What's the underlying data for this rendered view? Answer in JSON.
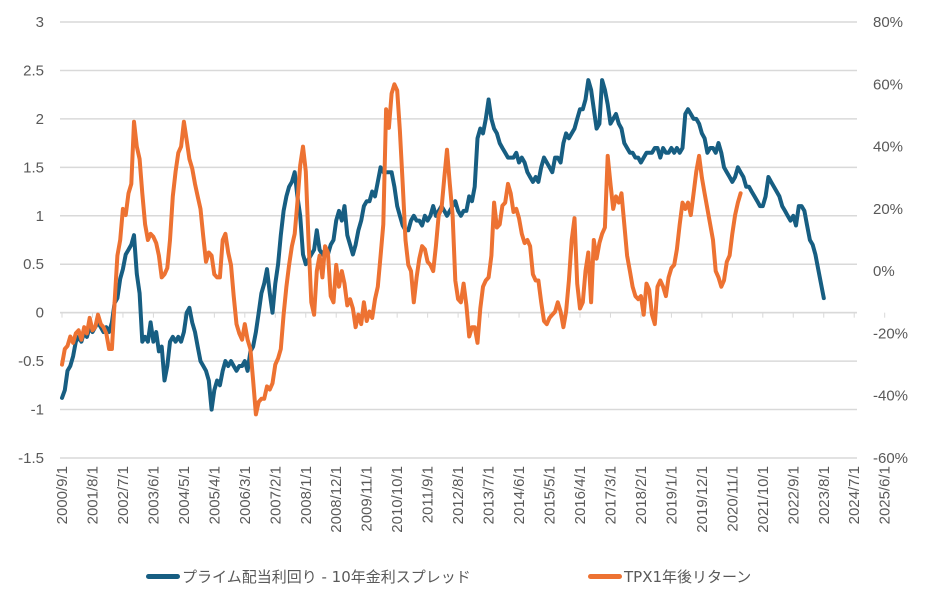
{
  "chart_data": {
    "type": "line",
    "title": "",
    "xlabel": "",
    "ylabel": "",
    "y_left": {
      "range": [
        -1.5,
        3
      ],
      "ticks": [
        "3",
        "2.5",
        "2",
        "1.5",
        "1",
        "0.5",
        "0",
        "-0.5",
        "-1",
        "-1.5"
      ]
    },
    "y_right": {
      "range": [
        -60,
        80
      ],
      "unit": "%",
      "ticks": [
        "80%",
        "60%",
        "40%",
        "20%",
        "0%",
        "-20%",
        "-40%",
        "-60%"
      ]
    },
    "x_start": "2000/9",
    "x_interval_months": 1,
    "x_tick_labels": [
      "2000/9/1",
      "2001/8/1",
      "2002/7/1",
      "2003/6/1",
      "2004/5/1",
      "2005/4/1",
      "2006/3/1",
      "2007/2/1",
      "2008/1/1",
      "2008/12/1",
      "2009/11/1",
      "2010/10/1",
      "2011/9/1",
      "2012/8/1",
      "2013/7/1",
      "2014/6/1",
      "2015/5/1",
      "2016/4/1",
      "2017/3/1",
      "2018/2/1",
      "2019/1/1",
      "2019/12/1",
      "2020/11/1",
      "2021/10/1",
      "2022/9/1",
      "2023/8/1",
      "2024/7/1",
      "2025/6/1"
    ],
    "grid": true,
    "legend_position": "bottom",
    "series": [
      {
        "name": "プライム配当利回り - 10年金利スプレッド",
        "axis": "left",
        "color": "#175e82",
        "values": [
          -0.88,
          -0.8,
          -0.6,
          -0.55,
          -0.45,
          -0.3,
          -0.25,
          -0.3,
          -0.2,
          -0.25,
          -0.15,
          -0.2,
          -0.15,
          -0.1,
          -0.15,
          -0.2,
          -0.15,
          -0.2,
          -0.1,
          0.1,
          0.15,
          0.35,
          0.45,
          0.6,
          0.65,
          0.7,
          0.8,
          0.4,
          0.2,
          -0.3,
          -0.25,
          -0.3,
          -0.1,
          -0.3,
          -0.2,
          -0.4,
          -0.35,
          -0.7,
          -0.55,
          -0.3,
          -0.25,
          -0.3,
          -0.25,
          -0.3,
          -0.2,
          0.0,
          0.05,
          -0.1,
          -0.2,
          -0.35,
          -0.5,
          -0.55,
          -0.6,
          -0.7,
          -1.0,
          -0.8,
          -0.7,
          -0.75,
          -0.6,
          -0.5,
          -0.55,
          -0.5,
          -0.55,
          -0.6,
          -0.55,
          -0.55,
          -0.5,
          -0.6,
          -0.4,
          -0.35,
          -0.2,
          0.0,
          0.2,
          0.3,
          0.45,
          0.2,
          0.0,
          0.3,
          0.5,
          0.8,
          1.05,
          1.2,
          1.3,
          1.35,
          1.45,
          1.2,
          1.0,
          0.6,
          0.5,
          0.55,
          0.6,
          0.65,
          0.85,
          0.65,
          0.6,
          0.65,
          0.6,
          0.7,
          0.75,
          0.95,
          1.05,
          0.95,
          1.1,
          0.8,
          0.7,
          0.6,
          0.7,
          0.85,
          0.95,
          1.1,
          1.15,
          1.15,
          1.25,
          1.2,
          1.35,
          1.5,
          1.45,
          1.45,
          1.45,
          1.45,
          1.3,
          1.1,
          1.0,
          0.9,
          0.85,
          0.85,
          0.95,
          1.0,
          0.95,
          0.95,
          0.9,
          1.0,
          0.95,
          1.0,
          1.1,
          1.0,
          1.05,
          1.1,
          1.05,
          1.0,
          1.05,
          1.1,
          1.15,
          1.05,
          1.0,
          1.05,
          1.05,
          1.2,
          1.15,
          1.3,
          1.8,
          1.9,
          1.85,
          2.0,
          2.2,
          2.0,
          1.9,
          1.85,
          1.75,
          1.7,
          1.65,
          1.6,
          1.6,
          1.6,
          1.65,
          1.55,
          1.6,
          1.55,
          1.45,
          1.4,
          1.35,
          1.4,
          1.35,
          1.5,
          1.6,
          1.55,
          1.5,
          1.45,
          1.6,
          1.6,
          1.55,
          1.75,
          1.85,
          1.8,
          1.85,
          1.9,
          2.0,
          2.1,
          2.1,
          2.2,
          2.4,
          2.3,
          2.1,
          1.9,
          1.95,
          2.4,
          2.3,
          2.15,
          1.95,
          2.0,
          2.05,
          1.95,
          1.9,
          1.75,
          1.7,
          1.65,
          1.65,
          1.6,
          1.6,
          1.55,
          1.6,
          1.65,
          1.65,
          1.65,
          1.7,
          1.7,
          1.6,
          1.7,
          1.65,
          1.65,
          1.7,
          1.65,
          1.7,
          1.65,
          1.7,
          2.05,
          2.1,
          2.05,
          2.0,
          2.0,
          1.95,
          1.85,
          1.8,
          1.65,
          1.7,
          1.7,
          1.65,
          1.75,
          1.65,
          1.5,
          1.45,
          1.4,
          1.35,
          1.4,
          1.5,
          1.45,
          1.4,
          1.3,
          1.3,
          1.25,
          1.2,
          1.15,
          1.1,
          1.1,
          1.2,
          1.4,
          1.35,
          1.3,
          1.25,
          1.2,
          1.1,
          1.05,
          1.0,
          0.95,
          1.0,
          0.9,
          1.1,
          1.1,
          1.05,
          0.9,
          0.75,
          0.7,
          0.6,
          0.45,
          0.3,
          0.15
        ]
      },
      {
        "name": "TPX1年後リターン",
        "axis": "right",
        "color": "#ed7232",
        "values": [
          -30,
          -25,
          -24,
          -21,
          -23,
          -20,
          -19,
          -22,
          -18,
          -20,
          -15,
          -19,
          -18,
          -14,
          -17,
          -18,
          -20,
          -25,
          -25,
          -10,
          5,
          10,
          20,
          18,
          25,
          28,
          48,
          40,
          36,
          25,
          15,
          10,
          12,
          11,
          9,
          5,
          -2,
          -1,
          1,
          10,
          24,
          32,
          38,
          40,
          48,
          42,
          36,
          33,
          28,
          24,
          20,
          11,
          3,
          6,
          5,
          -1,
          -2,
          -2,
          10,
          12,
          6,
          2,
          -8,
          -17,
          -20,
          -22,
          -17,
          -22,
          -25,
          -35,
          -46,
          -42,
          -41,
          -41,
          -37,
          -38,
          -36,
          -30,
          -28,
          -25,
          -14,
          -5,
          2,
          8,
          12,
          22,
          34,
          40,
          32,
          10,
          -10,
          -14,
          0,
          5,
          -2,
          8,
          6,
          -8,
          -10,
          2,
          -5,
          0,
          -4,
          -11,
          -9,
          -12,
          -18,
          -14,
          -17,
          -10,
          -16,
          -13,
          -15,
          -9,
          -5,
          5,
          15,
          52,
          46,
          57,
          60,
          58,
          45,
          28,
          10,
          2,
          0,
          -10,
          -2,
          4,
          8,
          7,
          3,
          2,
          0,
          8,
          18,
          20,
          30,
          39,
          28,
          18,
          -3,
          -9,
          -10,
          -4,
          -11,
          -21,
          -18,
          -18,
          -23,
          -12,
          -5,
          -3,
          -2,
          5,
          22,
          14,
          15,
          21,
          22,
          28,
          25,
          19,
          20,
          17,
          12,
          9,
          10,
          8,
          -1,
          -3,
          -3,
          -10,
          -16,
          -17,
          -15,
          -14,
          -13,
          -10,
          -13,
          -18,
          -13,
          -3,
          10,
          17,
          -4,
          -12,
          -10,
          0,
          6,
          -10,
          10,
          4,
          9,
          12,
          14,
          37,
          28,
          20,
          24,
          22,
          25,
          15,
          5,
          0,
          -5,
          -8,
          -9,
          -8,
          -14,
          -4,
          -6,
          -14,
          -17,
          -5,
          -3,
          -5,
          -8,
          -2,
          1,
          2,
          7,
          15,
          22,
          20,
          22,
          18,
          25,
          32,
          37,
          30,
          25,
          20,
          15,
          10,
          0,
          -2,
          -5,
          -3,
          3,
          5,
          12,
          18,
          22,
          25
        ]
      }
    ]
  },
  "legend": {
    "items": [
      {
        "label": "プライム配当利回り - 10年金利スプレッド",
        "color": "#175e82"
      },
      {
        "label": "TPX1年後リターン",
        "color": "#ed7232"
      }
    ]
  }
}
